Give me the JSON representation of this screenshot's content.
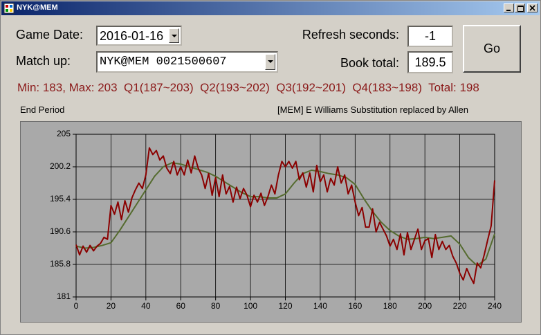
{
  "window": {
    "title": "NYK@MEM"
  },
  "form": {
    "game_date_label": "Game Date:",
    "game_date": "2016-01-16",
    "matchup_label": "Match up:",
    "matchup": "NYK@MEM 0021500607",
    "refresh_label": "Refresh seconds:",
    "refresh": "-1",
    "book_total_label": "Book total:",
    "book_total": "189.5",
    "go": "Go",
    "summary": "Min: 183, Max: 203  Q1(187~203)  Q2(193~202)  Q3(192~201)  Q4(183~198)  Total: 198",
    "period": "End Period",
    "event": "[MEM] E Williams Substitution replaced by Allen"
  },
  "chart_data": {
    "type": "line",
    "xlim": [
      0,
      240
    ],
    "ylim": [
      181,
      205
    ],
    "xticks": [
      0,
      20,
      40,
      60,
      80,
      100,
      120,
      140,
      160,
      180,
      200,
      220,
      240
    ],
    "yticks": [
      181,
      185.8,
      190.6,
      195.4,
      200.2,
      205
    ],
    "grid": true,
    "series": [
      {
        "color": "#8b0000",
        "x": [
          0,
          2,
          4,
          6,
          8,
          10,
          12,
          14,
          16,
          18,
          20,
          22,
          24,
          26,
          28,
          30,
          32,
          34,
          36,
          38,
          40,
          42,
          44,
          46,
          48,
          50,
          52,
          54,
          56,
          58,
          60,
          62,
          64,
          66,
          68,
          70,
          72,
          74,
          76,
          78,
          80,
          82,
          84,
          86,
          88,
          90,
          92,
          94,
          96,
          98,
          100,
          102,
          104,
          106,
          108,
          110,
          112,
          114,
          116,
          118,
          120,
          122,
          124,
          126,
          128,
          130,
          132,
          134,
          136,
          138,
          140,
          142,
          144,
          146,
          148,
          150,
          152,
          154,
          156,
          158,
          160,
          162,
          164,
          166,
          168,
          170,
          172,
          174,
          176,
          178,
          180,
          182,
          184,
          186,
          188,
          190,
          192,
          194,
          196,
          198,
          200,
          202,
          204,
          206,
          208,
          210,
          212,
          214,
          216,
          218,
          220,
          222,
          224,
          226,
          228,
          230,
          232,
          234,
          236,
          238,
          240
        ],
        "values": [
          188.7,
          187.2,
          188.5,
          187.6,
          188.6,
          187.8,
          188.5,
          188.9,
          189.8,
          189.5,
          194.5,
          193.2,
          195.0,
          192.4,
          195.2,
          193.5,
          195.6,
          196.8,
          197.8,
          197.0,
          199.0,
          203.0,
          202.0,
          202.6,
          201.2,
          201.8,
          200.0,
          199.2,
          201.0,
          199.0,
          200.2,
          199.0,
          201.2,
          199.3,
          201.8,
          200.0,
          199.0,
          197.0,
          199.2,
          196.0,
          198.6,
          195.8,
          199.0,
          196.2,
          197.3,
          195.0,
          197.2,
          195.5,
          197.0,
          196.0,
          194.3,
          196.0,
          195.0,
          196.3,
          194.5,
          195.8,
          197.5,
          196.2,
          199.0,
          201.0,
          200.2,
          201.0,
          200.0,
          201.0,
          198.3,
          199.3,
          197.2,
          199.3,
          196.5,
          200.4,
          198.0,
          199.0,
          196.5,
          198.5,
          197.5,
          200.2,
          197.8,
          199.0,
          196.2,
          197.5,
          195.0,
          193.0,
          194.2,
          191.3,
          191.3,
          194.0,
          190.6,
          192.0,
          191.0,
          190.0,
          188.5,
          189.5,
          188.0,
          190.3,
          187.2,
          190.5,
          188.0,
          189.5,
          191.0,
          188.0,
          189.3,
          189.6,
          186.8,
          190.2,
          188.0,
          189.2,
          188.0,
          188.6,
          187.0,
          186.0,
          184.5,
          183.5,
          185.2,
          184.0,
          183.0,
          186.0,
          185.3,
          187.2,
          189.4,
          191.5,
          198.2
        ]
      },
      {
        "color": "#556b2f",
        "x": [
          0,
          5,
          10,
          15,
          20,
          25,
          30,
          35,
          40,
          45,
          50,
          55,
          60,
          65,
          70,
          75,
          80,
          85,
          90,
          95,
          100,
          105,
          110,
          115,
          120,
          125,
          130,
          135,
          140,
          145,
          150,
          155,
          160,
          165,
          170,
          175,
          180,
          185,
          190,
          195,
          200,
          205,
          210,
          215,
          220,
          225,
          230,
          235,
          240
        ],
        "values": [
          188.5,
          188.2,
          188.3,
          188.6,
          189.0,
          190.8,
          192.8,
          194.8,
          196.8,
          198.8,
          200.2,
          200.8,
          200.6,
          200.2,
          199.8,
          199.4,
          198.8,
          198.0,
          197.2,
          196.4,
          195.8,
          195.8,
          195.6,
          195.6,
          196.2,
          197.8,
          199.2,
          199.7,
          199.5,
          199.2,
          199.0,
          198.6,
          197.6,
          195.5,
          193.6,
          192.0,
          190.8,
          190.0,
          189.5,
          189.6,
          189.8,
          189.6,
          189.8,
          190.0,
          188.8,
          186.8,
          185.6,
          186.6,
          190.3
        ]
      }
    ]
  }
}
